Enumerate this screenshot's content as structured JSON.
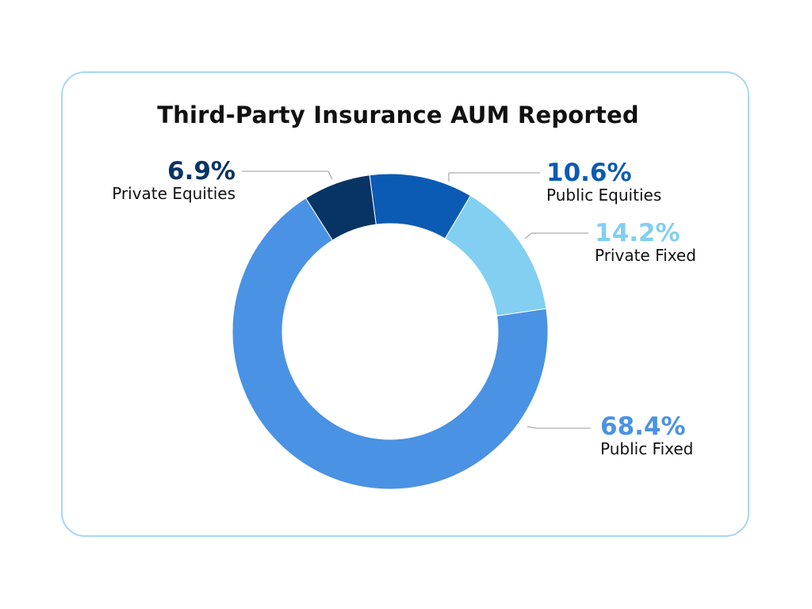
{
  "chart_data": {
    "type": "pie",
    "title": "Third-Party Insurance AUM Reported",
    "start_category": "Public Equities",
    "slices": [
      {
        "label": "Public Equities",
        "value": 10.6,
        "value_label": "10.6%",
        "color": "#0b5bb4"
      },
      {
        "label": "Private Fixed",
        "value": 14.2,
        "value_label": "14.2%",
        "color": "#82cff2"
      },
      {
        "label": "Public Fixed",
        "value": 68.4,
        "value_label": "68.4%",
        "color": "#4a92e3"
      },
      {
        "label": "Private Equities",
        "value": 6.9,
        "value_label": "6.9%",
        "color": "#083464"
      }
    ],
    "legend": "none",
    "grid": false
  }
}
